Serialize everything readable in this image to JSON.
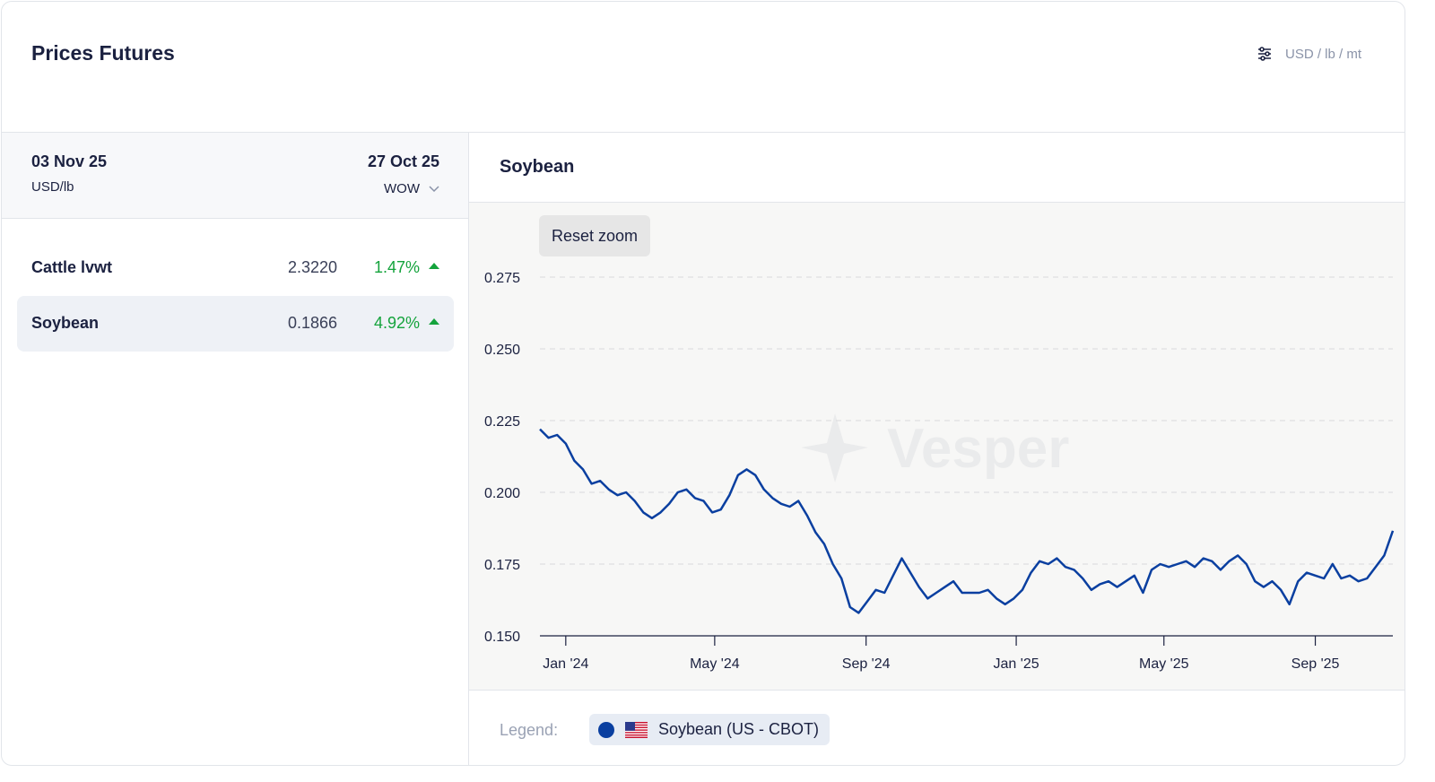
{
  "header": {
    "title": "Prices Futures",
    "units": "USD / lb / mt",
    "settings_icon": "sliders-icon"
  },
  "table": {
    "date_current": "03 Nov 25",
    "unit": "USD/lb",
    "date_compare": "27 Oct 25",
    "compare_mode": "WOW",
    "rows": [
      {
        "name": "Cattle lvwt",
        "price": "2.3220",
        "change": "1.47%",
        "direction": "up",
        "active": false
      },
      {
        "name": "Soybean",
        "price": "0.1866",
        "change": "4.92%",
        "direction": "up",
        "active": true
      }
    ]
  },
  "chart": {
    "title": "Soybean",
    "reset_zoom_label": "Reset zoom",
    "watermark": "Vesper",
    "legend_label": "Legend:",
    "legend_item": "Soybean (US - CBOT)",
    "line_color": "#0a3fa0"
  },
  "chart_data": {
    "type": "line",
    "title": "Soybean",
    "xlabel": "",
    "ylabel": "",
    "ylim": [
      0.15,
      0.275
    ],
    "yticks": [
      "0.150",
      "0.175",
      "0.200",
      "0.225",
      "0.250",
      "0.275"
    ],
    "xticks": [
      "Jan '24",
      "May '24",
      "Sep '24",
      "Jan '25",
      "May '25",
      "Sep '25"
    ],
    "xrange": [
      "2023-12-11",
      "2025-11-03"
    ],
    "grid": true,
    "legend": "bottom",
    "series": [
      {
        "name": "Soybean (US - CBOT)",
        "points": [
          [
            "2023-12-11",
            0.222
          ],
          [
            "2023-12-18",
            0.219
          ],
          [
            "2023-12-25",
            0.22
          ],
          [
            "2024-01-01",
            0.217
          ],
          [
            "2024-01-08",
            0.211
          ],
          [
            "2024-01-15",
            0.208
          ],
          [
            "2024-01-22",
            0.203
          ],
          [
            "2024-01-29",
            0.204
          ],
          [
            "2024-02-05",
            0.201
          ],
          [
            "2024-02-12",
            0.199
          ],
          [
            "2024-02-19",
            0.2
          ],
          [
            "2024-02-26",
            0.197
          ],
          [
            "2024-03-04",
            0.193
          ],
          [
            "2024-03-11",
            0.191
          ],
          [
            "2024-03-18",
            0.193
          ],
          [
            "2024-03-25",
            0.196
          ],
          [
            "2024-04-01",
            0.2
          ],
          [
            "2024-04-08",
            0.201
          ],
          [
            "2024-04-15",
            0.198
          ],
          [
            "2024-04-22",
            0.197
          ],
          [
            "2024-04-29",
            0.193
          ],
          [
            "2024-05-06",
            0.194
          ],
          [
            "2024-05-13",
            0.199
          ],
          [
            "2024-05-20",
            0.206
          ],
          [
            "2024-05-27",
            0.208
          ],
          [
            "2024-06-03",
            0.206
          ],
          [
            "2024-06-10",
            0.201
          ],
          [
            "2024-06-17",
            0.198
          ],
          [
            "2024-06-24",
            0.196
          ],
          [
            "2024-07-01",
            0.195
          ],
          [
            "2024-07-08",
            0.197
          ],
          [
            "2024-07-15",
            0.192
          ],
          [
            "2024-07-22",
            0.186
          ],
          [
            "2024-07-29",
            0.182
          ],
          [
            "2024-08-05",
            0.175
          ],
          [
            "2024-08-12",
            0.17
          ],
          [
            "2024-08-19",
            0.16
          ],
          [
            "2024-08-26",
            0.158
          ],
          [
            "2024-09-02",
            0.162
          ],
          [
            "2024-09-09",
            0.166
          ],
          [
            "2024-09-16",
            0.165
          ],
          [
            "2024-09-23",
            0.171
          ],
          [
            "2024-09-30",
            0.177
          ],
          [
            "2024-10-07",
            0.172
          ],
          [
            "2024-10-14",
            0.167
          ],
          [
            "2024-10-21",
            0.163
          ],
          [
            "2024-10-28",
            0.165
          ],
          [
            "2024-11-04",
            0.167
          ],
          [
            "2024-11-11",
            0.169
          ],
          [
            "2024-11-18",
            0.165
          ],
          [
            "2024-11-25",
            0.165
          ],
          [
            "2024-12-02",
            0.165
          ],
          [
            "2024-12-09",
            0.166
          ],
          [
            "2024-12-16",
            0.163
          ],
          [
            "2024-12-23",
            0.161
          ],
          [
            "2024-12-30",
            0.163
          ],
          [
            "2025-01-06",
            0.166
          ],
          [
            "2025-01-13",
            0.172
          ],
          [
            "2025-01-20",
            0.176
          ],
          [
            "2025-01-27",
            0.175
          ],
          [
            "2025-02-03",
            0.177
          ],
          [
            "2025-02-10",
            0.174
          ],
          [
            "2025-02-17",
            0.173
          ],
          [
            "2025-02-24",
            0.17
          ],
          [
            "2025-03-03",
            0.166
          ],
          [
            "2025-03-10",
            0.168
          ],
          [
            "2025-03-17",
            0.169
          ],
          [
            "2025-03-24",
            0.167
          ],
          [
            "2025-03-31",
            0.169
          ],
          [
            "2025-04-07",
            0.171
          ],
          [
            "2025-04-14",
            0.165
          ],
          [
            "2025-04-21",
            0.173
          ],
          [
            "2025-04-28",
            0.175
          ],
          [
            "2025-05-05",
            0.174
          ],
          [
            "2025-05-12",
            0.175
          ],
          [
            "2025-05-19",
            0.176
          ],
          [
            "2025-05-26",
            0.174
          ],
          [
            "2025-06-02",
            0.177
          ],
          [
            "2025-06-09",
            0.176
          ],
          [
            "2025-06-16",
            0.173
          ],
          [
            "2025-06-23",
            0.176
          ],
          [
            "2025-06-30",
            0.178
          ],
          [
            "2025-07-07",
            0.175
          ],
          [
            "2025-07-14",
            0.169
          ],
          [
            "2025-07-21",
            0.167
          ],
          [
            "2025-07-28",
            0.169
          ],
          [
            "2025-08-04",
            0.166
          ],
          [
            "2025-08-11",
            0.161
          ],
          [
            "2025-08-18",
            0.169
          ],
          [
            "2025-08-25",
            0.172
          ],
          [
            "2025-09-01",
            0.171
          ],
          [
            "2025-09-08",
            0.17
          ],
          [
            "2025-09-15",
            0.175
          ],
          [
            "2025-09-22",
            0.17
          ],
          [
            "2025-09-29",
            0.171
          ],
          [
            "2025-10-06",
            0.169
          ],
          [
            "2025-10-13",
            0.17
          ],
          [
            "2025-10-20",
            0.174
          ],
          [
            "2025-10-27",
            0.178
          ],
          [
            "2025-11-03",
            0.1866
          ]
        ]
      }
    ]
  }
}
